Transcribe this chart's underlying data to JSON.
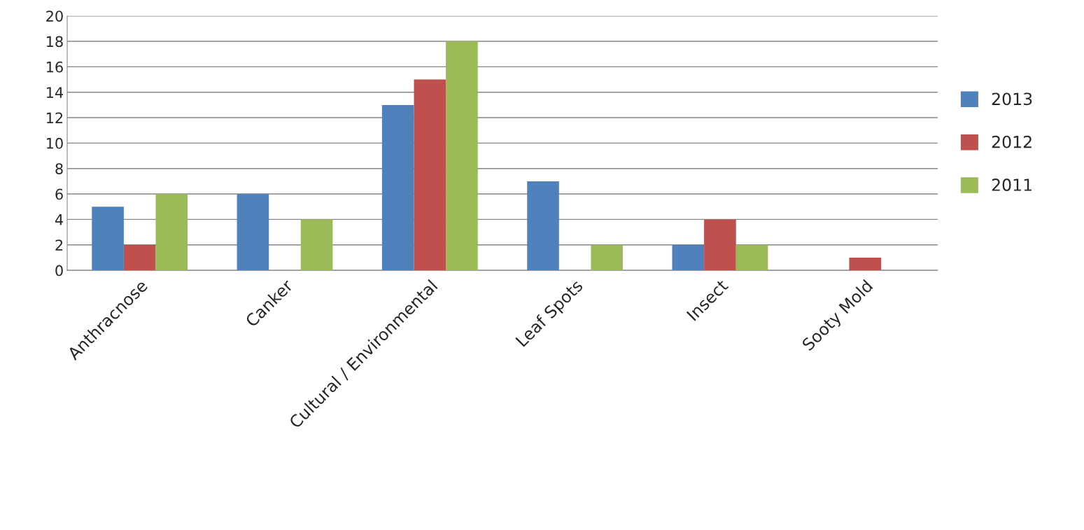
{
  "chart_data": {
    "type": "bar",
    "categories": [
      "Anthracnose",
      "Canker",
      "Cultural / Environmental",
      "Leaf Spots",
      "Insect",
      "Sooty Mold"
    ],
    "series": [
      {
        "name": "2013",
        "color": "#4f81bd",
        "values": [
          5,
          6,
          13,
          7,
          2,
          null
        ]
      },
      {
        "name": "2012",
        "color": "#c0504d",
        "values": [
          2,
          null,
          15,
          null,
          4,
          1
        ]
      },
      {
        "name": "2011",
        "color": "#9bbb59",
        "values": [
          6,
          4,
          18,
          2,
          2,
          null
        ]
      }
    ],
    "ylim": [
      0,
      20
    ],
    "yticks": [
      0,
      2,
      4,
      6,
      8,
      10,
      12,
      14,
      16,
      18,
      20
    ],
    "grid": "y",
    "legend": "right"
  }
}
